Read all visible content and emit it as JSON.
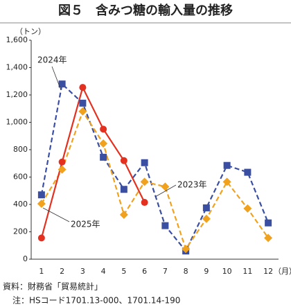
{
  "chart_data": {
    "type": "line",
    "title": "図５　含みつ糖の輸入量の推移",
    "y_label": "（トン）",
    "x_unit": "（月）",
    "categories": [
      "1",
      "2",
      "3",
      "4",
      "5",
      "6",
      "7",
      "8",
      "9",
      "10",
      "11",
      "12"
    ],
    "series": [
      {
        "name": "2024年",
        "color": "#3a4ea2",
        "dash": true,
        "marker": "square",
        "values": [
          470,
          1280,
          1140,
          745,
          510,
          705,
          245,
          60,
          375,
          685,
          635,
          265
        ]
      },
      {
        "name": "2023年",
        "color": "#f0a21e",
        "dash": true,
        "marker": "diamond",
        "values": [
          405,
          655,
          1080,
          845,
          325,
          565,
          530,
          75,
          295,
          565,
          370,
          155
        ]
      },
      {
        "name": "2025年",
        "color": "#e3301f",
        "dash": false,
        "marker": "circle",
        "values": [
          155,
          710,
          1255,
          950,
          720,
          415,
          null,
          null,
          null,
          null,
          null,
          null
        ]
      }
    ],
    "ylim": [
      0,
      1600
    ],
    "yticks": [
      0,
      200,
      400,
      600,
      800,
      {
        "value": 1000,
        "label": "1,000"
      },
      {
        "value": 1200,
        "label": "1,200"
      },
      {
        "value": 1400,
        "label": "1,400"
      },
      {
        "value": 1600,
        "label": "1,600"
      }
    ],
    "grid": false,
    "notes": [
      "資料：財務省「貿易統計」",
      "注：HSコード1701.13-000、1701.14-190"
    ]
  }
}
